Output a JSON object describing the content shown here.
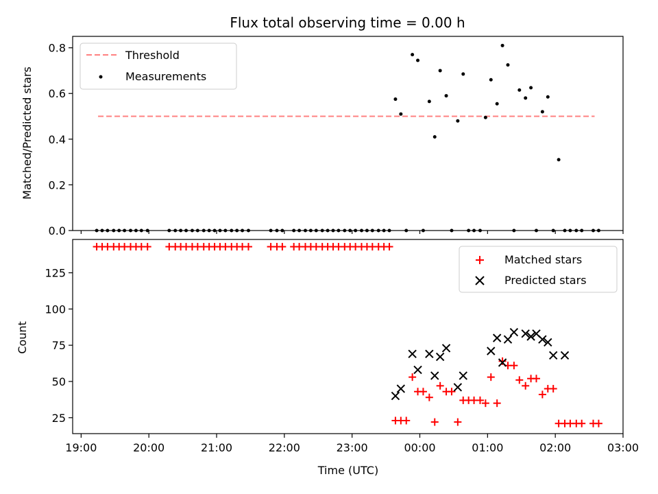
{
  "chart_data": [
    {
      "type": "scatter",
      "title": "Flux total observing time = 0.00 h",
      "xlabel": "",
      "ylabel": "Matched/Predicted stars",
      "xlim": [
        -0.125,
        8.0
      ],
      "ylim": [
        0.0,
        0.85
      ],
      "yticks": [
        0.0,
        0.2,
        0.4,
        0.6,
        0.8
      ],
      "ytick_labels": [
        "0.0",
        "0.2",
        "0.4",
        "0.6",
        "0.8"
      ],
      "legend_position": "top-left",
      "threshold": {
        "name": "Threshold",
        "value": 0.5,
        "x_range": [
          0.25,
          7.58
        ],
        "color": "#ff8080",
        "style": "dashed"
      },
      "series": [
        {
          "name": "Measurements",
          "color": "#000000",
          "marker": "dot",
          "x": [
            0.23,
            0.31,
            0.39,
            0.48,
            0.56,
            0.64,
            0.73,
            0.81,
            0.89,
            0.98,
            1.3,
            1.39,
            1.47,
            1.55,
            1.64,
            1.72,
            1.81,
            1.89,
            1.97,
            2.05,
            2.13,
            2.22,
            2.3,
            2.38,
            2.47,
            2.8,
            2.89,
            2.97,
            3.14,
            3.22,
            3.31,
            3.39,
            3.47,
            3.56,
            3.64,
            3.72,
            3.8,
            3.89,
            3.97,
            4.05,
            4.14,
            4.22,
            4.3,
            4.39,
            4.47,
            4.55,
            4.64,
            4.72,
            4.8,
            4.89,
            4.97,
            5.05,
            5.14,
            5.22,
            5.3,
            5.39,
            5.47,
            5.56,
            5.64,
            5.72,
            5.8,
            5.89,
            5.97,
            6.05,
            6.14,
            6.22,
            6.3,
            6.39,
            6.47,
            6.56,
            6.64,
            6.72,
            6.81,
            6.89,
            6.97,
            7.05,
            7.14,
            7.22,
            7.31,
            7.39,
            7.56,
            7.64
          ],
          "y": [
            0,
            0,
            0,
            0,
            0,
            0,
            0,
            0,
            0,
            0,
            0,
            0,
            0,
            0,
            0,
            0,
            0,
            0,
            0,
            0,
            0,
            0,
            0,
            0,
            0,
            0,
            0,
            0,
            0,
            0,
            0,
            0,
            0,
            0,
            0,
            0,
            0,
            0,
            0,
            0,
            0,
            0,
            0,
            0,
            0,
            0,
            0.575,
            0.51,
            0,
            0.77,
            0.745,
            0,
            0.565,
            0.41,
            0.7,
            0.59,
            0,
            0.48,
            0.685,
            0,
            0,
            0,
            0.495,
            0.66,
            0.555,
            0.81,
            0.725,
            0,
            0.615,
            0.58,
            0.625,
            0,
            0.52,
            0.585,
            0,
            0.31,
            0,
            0,
            0,
            0,
            0,
            0
          ]
        }
      ]
    },
    {
      "type": "scatter",
      "title": "",
      "xlabel": "Time (UTC)",
      "ylabel": "Count",
      "xlim": [
        -0.125,
        8.0
      ],
      "ylim": [
        14,
        148
      ],
      "yticks": [
        25,
        50,
        75,
        100,
        125
      ],
      "ytick_labels": [
        "25",
        "50",
        "75",
        "100",
        "125"
      ],
      "xticks": [
        0,
        1,
        2,
        3,
        4,
        5,
        6,
        7,
        8
      ],
      "xtick_labels": [
        "19:00",
        "20:00",
        "21:00",
        "22:00",
        "23:00",
        "00:00",
        "01:00",
        "02:00",
        "03:00"
      ],
      "legend_position": "top-right",
      "series": [
        {
          "name": "Matched stars",
          "color": "#ff0000",
          "marker": "plus",
          "x": [
            0.23,
            0.31,
            0.39,
            0.48,
            0.56,
            0.64,
            0.73,
            0.81,
            0.89,
            0.98,
            1.3,
            1.39,
            1.47,
            1.55,
            1.64,
            1.72,
            1.81,
            1.89,
            1.97,
            2.05,
            2.13,
            2.22,
            2.3,
            2.38,
            2.47,
            2.8,
            2.89,
            2.97,
            3.14,
            3.22,
            3.31,
            3.39,
            3.47,
            3.56,
            3.64,
            3.72,
            3.8,
            3.89,
            3.97,
            4.05,
            4.14,
            4.22,
            4.3,
            4.39,
            4.47,
            4.55,
            4.64,
            4.72,
            4.8,
            4.89,
            4.97,
            5.05,
            5.14,
            5.22,
            5.3,
            5.39,
            5.47,
            5.56,
            5.64,
            5.72,
            5.8,
            5.89,
            5.97,
            6.05,
            6.14,
            6.22,
            6.3,
            6.39,
            6.47,
            6.56,
            6.64,
            6.72,
            6.81,
            6.89,
            6.97,
            7.05,
            7.14,
            7.22,
            7.31,
            7.39,
            7.56,
            7.64
          ],
          "y": [
            143,
            143,
            143,
            143,
            143,
            143,
            143,
            143,
            143,
            143,
            143,
            143,
            143,
            143,
            143,
            143,
            143,
            143,
            143,
            143,
            143,
            143,
            143,
            143,
            143,
            143,
            143,
            143,
            143,
            143,
            143,
            143,
            143,
            143,
            143,
            143,
            143,
            143,
            143,
            143,
            143,
            143,
            143,
            143,
            143,
            143,
            23,
            23,
            23,
            53,
            43,
            43,
            39,
            22,
            47,
            43,
            43,
            22,
            37,
            37,
            37,
            37,
            35,
            53,
            35,
            64,
            61,
            61,
            51,
            47,
            52,
            52,
            41,
            45,
            45,
            21,
            21,
            21,
            21,
            21,
            21,
            21
          ]
        },
        {
          "name": "Predicted stars",
          "color": "#000000",
          "marker": "x",
          "x": [
            4.64,
            4.72,
            4.89,
            4.97,
            5.14,
            5.22,
            5.3,
            5.39,
            5.56,
            5.64,
            6.05,
            6.14,
            6.22,
            6.3,
            6.39,
            6.56,
            6.64,
            6.72,
            6.81,
            6.89,
            6.97,
            7.14
          ],
          "y": [
            40,
            45,
            69,
            58,
            69,
            54,
            67,
            73,
            46,
            54,
            71,
            80,
            63,
            79,
            84,
            83,
            81,
            83,
            79,
            77,
            68,
            68
          ]
        }
      ]
    }
  ]
}
